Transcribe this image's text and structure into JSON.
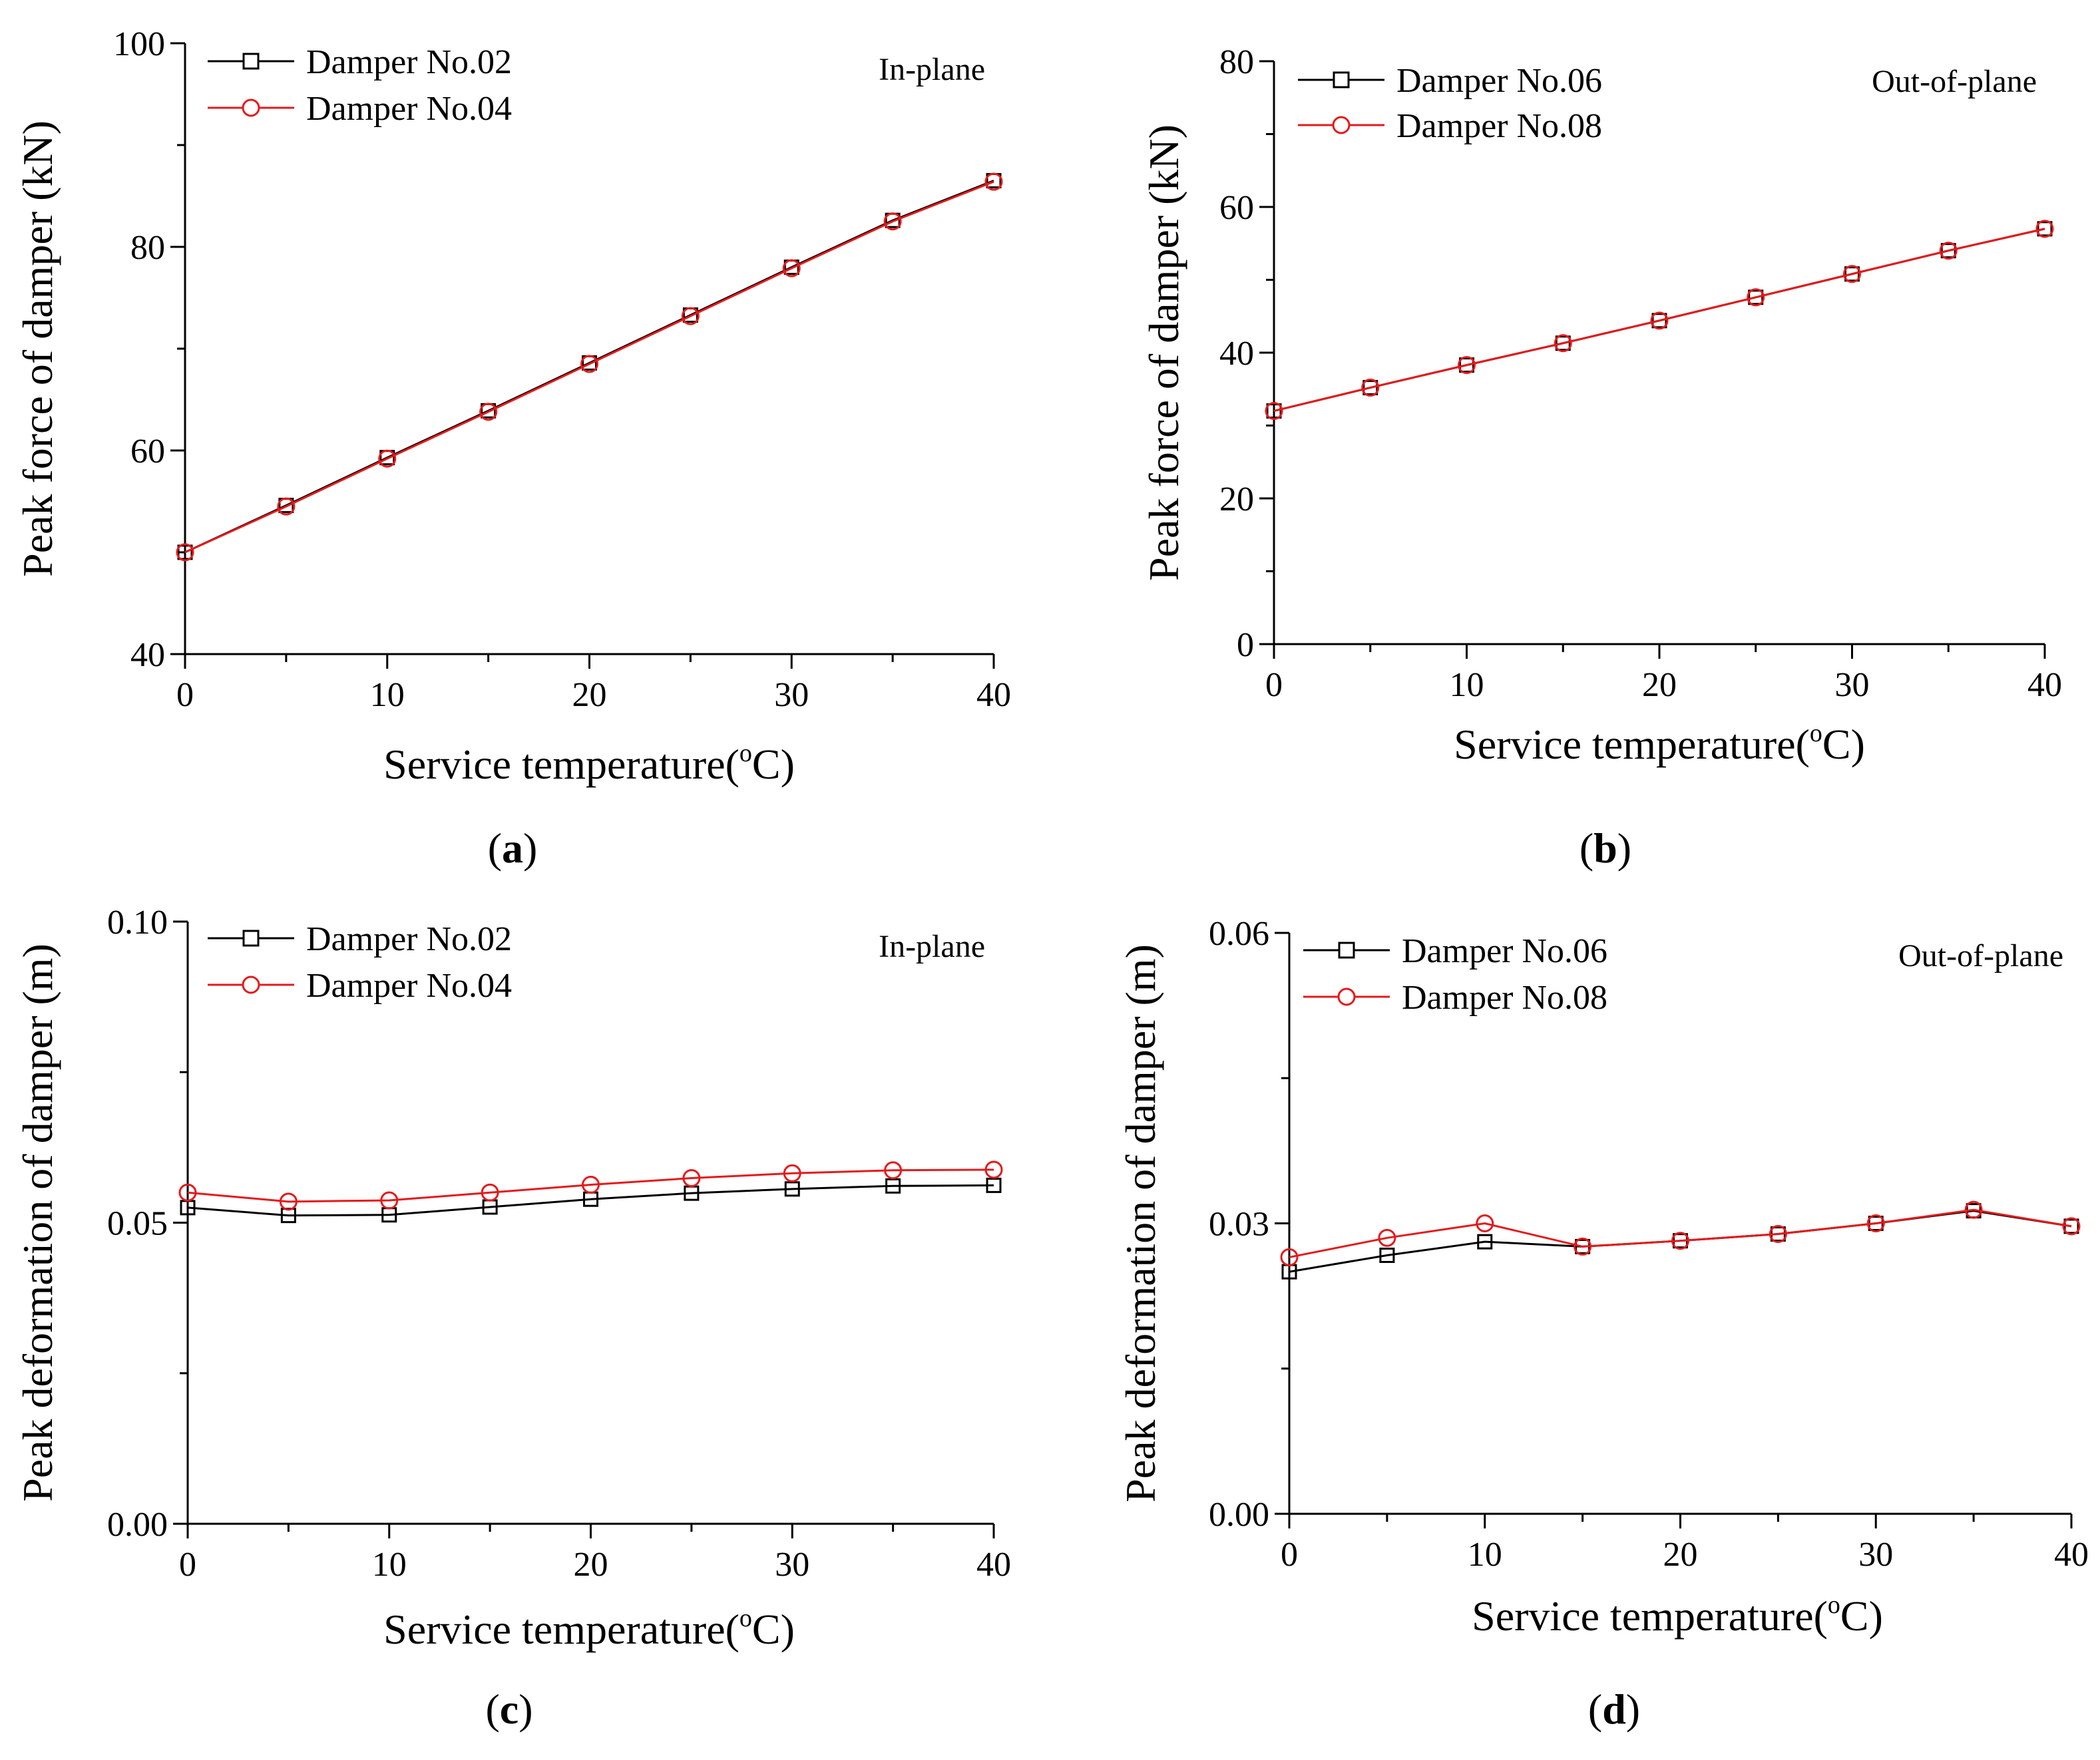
{
  "chart_data": [
    {
      "type": "line",
      "panel": "(a)",
      "panel_letter": "a",
      "annotation": "In-plane",
      "xlabel": "Service temperature(°C)",
      "xlabel_main": "Service temperature(",
      "xlabel_unit_sup": "o",
      "xlabel_unit_tail": "C)",
      "ylabel": "Peak force of damper (kN)",
      "xlim": [
        0,
        40
      ],
      "ylim": [
        40,
        100
      ],
      "xticks": [
        0,
        10,
        20,
        30,
        40
      ],
      "xtick_labels": [
        "0",
        "10",
        "20",
        "30",
        "40"
      ],
      "yticks": [
        40,
        60,
        80,
        100
      ],
      "ytick_labels": [
        "40",
        "60",
        "80",
        "100"
      ],
      "x": [
        0,
        5,
        10,
        15,
        20,
        25,
        30,
        35,
        40
      ],
      "series": [
        {
          "name": "Damper No.02",
          "color": "#000000",
          "marker": "square",
          "values": [
            50.0,
            54.6,
            59.3,
            63.9,
            68.6,
            73.3,
            78.0,
            82.6,
            86.5
          ]
        },
        {
          "name": "Damper No.04",
          "color": "#e41a1c",
          "marker": "circle",
          "values": [
            50.0,
            54.5,
            59.2,
            63.8,
            68.5,
            73.2,
            77.9,
            82.5,
            86.4
          ]
        }
      ]
    },
    {
      "type": "line",
      "panel": "(b)",
      "panel_letter": "b",
      "annotation": "Out-of-plane",
      "xlabel": "Service temperature(°C)",
      "xlabel_main": "Service temperature(",
      "xlabel_unit_sup": "o",
      "xlabel_unit_tail": "C)",
      "ylabel": "Peak force of damper (kN)",
      "xlim": [
        0,
        40
      ],
      "ylim": [
        0,
        80
      ],
      "xticks": [
        0,
        10,
        20,
        30,
        40
      ],
      "xtick_labels": [
        "0",
        "10",
        "20",
        "30",
        "40"
      ],
      "yticks": [
        0,
        20,
        40,
        60,
        80
      ],
      "ytick_labels": [
        "0",
        "20",
        "40",
        "60",
        "80"
      ],
      "x": [
        0,
        5,
        10,
        15,
        20,
        25,
        30,
        35,
        40
      ],
      "series": [
        {
          "name": "Damper No.06",
          "color": "#000000",
          "marker": "square",
          "values": [
            32.0,
            35.2,
            38.3,
            41.3,
            44.4,
            47.6,
            50.8,
            54.0,
            57.0
          ]
        },
        {
          "name": "Damper No.08",
          "color": "#e41a1c",
          "marker": "circle",
          "values": [
            32.0,
            35.2,
            38.3,
            41.3,
            44.4,
            47.6,
            50.8,
            54.0,
            57.0
          ]
        }
      ]
    },
    {
      "type": "line",
      "panel": "(c)",
      "panel_letter": "c",
      "annotation": "In-plane",
      "xlabel": "Service temperature(°C)",
      "xlabel_main": "Service temperature(",
      "xlabel_unit_sup": "o",
      "xlabel_unit_tail": "C)",
      "ylabel": "Peak deformation of damper (m)",
      "xlim": [
        0,
        40
      ],
      "ylim": [
        0,
        0.1
      ],
      "xticks": [
        0,
        10,
        20,
        30,
        40
      ],
      "xtick_labels": [
        "0",
        "10",
        "20",
        "30",
        "40"
      ],
      "yticks": [
        0,
        0.05,
        0.1
      ],
      "ytick_labels": [
        "0.00",
        "0.05",
        "0.10"
      ],
      "x": [
        0,
        5,
        10,
        15,
        20,
        25,
        30,
        35,
        40
      ],
      "series": [
        {
          "name": "Damper No.02",
          "color": "#000000",
          "marker": "square",
          "values": [
            0.0525,
            0.0512,
            0.0513,
            0.0526,
            0.0539,
            0.0549,
            0.0556,
            0.0561,
            0.0562
          ]
        },
        {
          "name": "Damper No.04",
          "color": "#e41a1c",
          "marker": "circle",
          "values": [
            0.055,
            0.0535,
            0.0537,
            0.055,
            0.0563,
            0.0574,
            0.0582,
            0.0587,
            0.0588
          ]
        }
      ]
    },
    {
      "type": "line",
      "panel": "(d)",
      "panel_letter": "d",
      "annotation": "Out-of-plane",
      "xlabel": "Service temperature(°C)",
      "xlabel_main": "Service temperature(",
      "xlabel_unit_sup": "o",
      "xlabel_unit_tail": "C)",
      "ylabel": "Peak deformation of damper (m)",
      "xlim": [
        0,
        40
      ],
      "ylim": [
        0,
        0.06
      ],
      "xticks": [
        0,
        10,
        20,
        30,
        40
      ],
      "xtick_labels": [
        "0",
        "10",
        "20",
        "30",
        "40"
      ],
      "yticks": [
        0,
        0.03,
        0.06
      ],
      "ytick_labels": [
        "0.00",
        "0.03",
        "0.06"
      ],
      "x": [
        0,
        5,
        10,
        15,
        20,
        25,
        30,
        35,
        40
      ],
      "series": [
        {
          "name": "Damper No.06",
          "color": "#000000",
          "marker": "square",
          "values": [
            0.025,
            0.0267,
            0.0281,
            0.0276,
            0.0282,
            0.0289,
            0.03,
            0.0313,
            0.0297
          ]
        },
        {
          "name": "Damper No.08",
          "color": "#e41a1c",
          "marker": "circle",
          "values": [
            0.0265,
            0.0285,
            0.03,
            0.0276,
            0.0282,
            0.0289,
            0.03,
            0.0314,
            0.0297
          ]
        }
      ]
    }
  ]
}
